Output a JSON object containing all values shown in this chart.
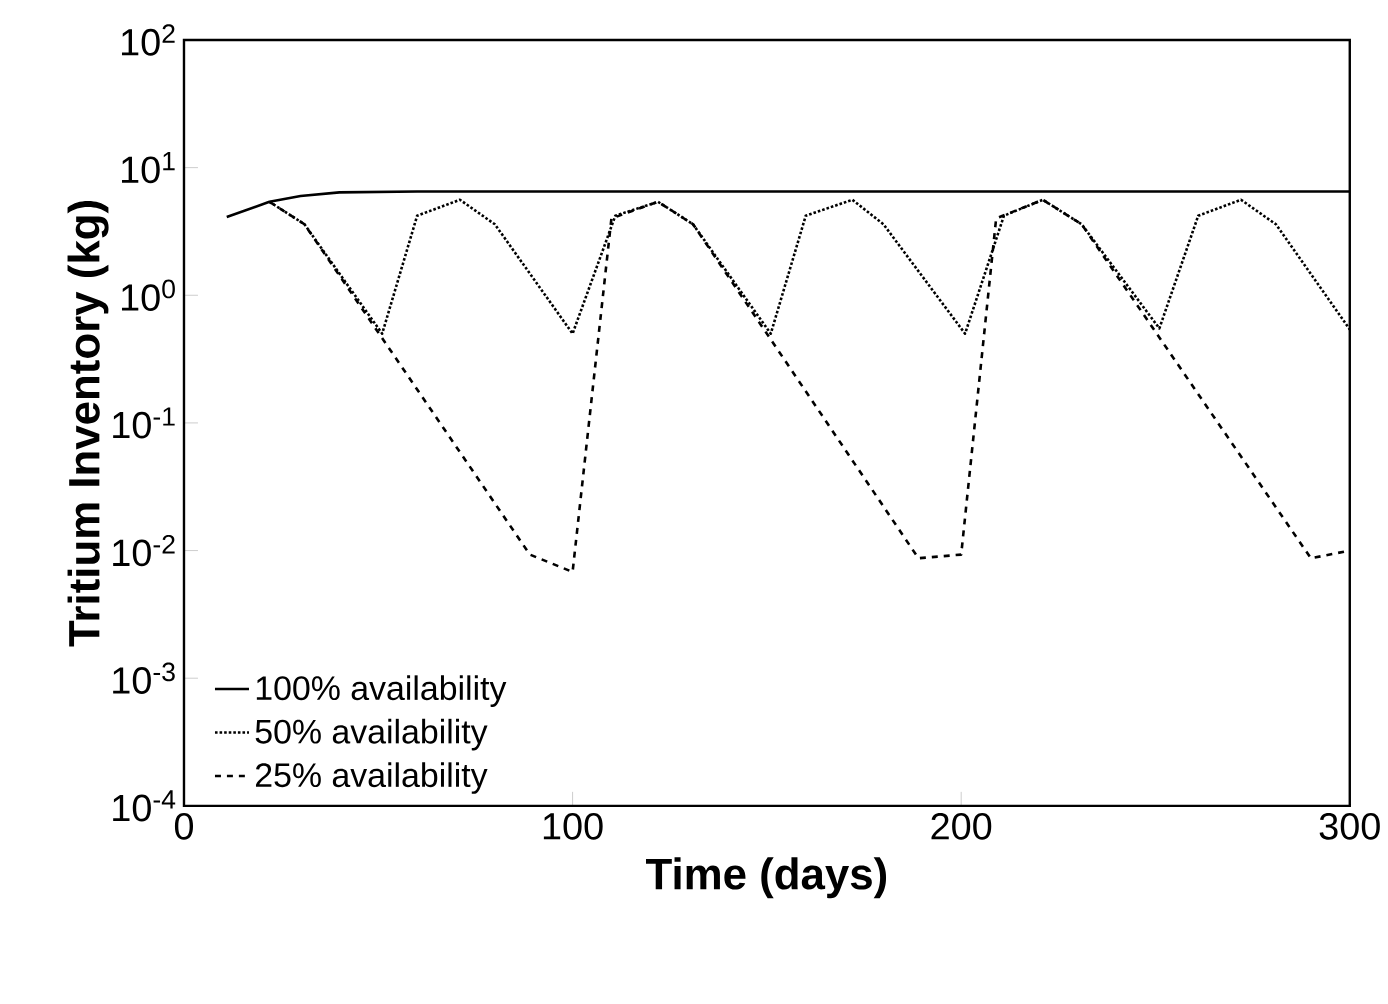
{
  "chart_data": {
    "type": "line",
    "xlabel": "Time (days)",
    "ylabel": "Tritium Inventory (kg)",
    "log": "y",
    "legend": "bottom left",
    "xlim": [
      0,
      300
    ],
    "xticks": [
      0,
      100,
      200,
      300
    ],
    "ylim": [
      0.0001,
      100
    ],
    "yticks": [
      {
        "value": 0.0001,
        "label": "10$^{-4}$"
      },
      {
        "value": 0.001,
        "label": "10$^{-3}$"
      },
      {
        "value": 0.01,
        "label": "10$^{-2}$"
      },
      {
        "value": 0.1,
        "label": "10$^{-1}$"
      },
      {
        "value": 1,
        "label": "10$^{0}$"
      },
      {
        "value": 10,
        "label": "10$^{1}$"
      },
      {
        "value": 100,
        "label": "10$^{2}$"
      }
    ],
    "series": [
      {
        "name": "100% availability",
        "color": "#000000",
        "line_style": "solid",
        "x": [
          11,
          22,
          30,
          40,
          60,
          100,
          150,
          200,
          250,
          300
        ],
        "values": [
          4.1,
          5.4,
          6.0,
          6.4,
          6.5,
          6.5,
          6.5,
          6.5,
          6.5,
          6.5
        ]
      },
      {
        "name": "50% availability",
        "color": "#000000",
        "line_style": "dotted",
        "x": [
          22,
          31,
          51,
          60,
          71,
          80,
          100,
          111,
          122,
          131,
          151,
          160,
          172,
          180,
          201,
          211,
          221,
          231,
          251,
          261,
          272,
          281,
          300
        ],
        "values": [
          5.4,
          3.6,
          0.5,
          4.2,
          5.6,
          3.6,
          0.5,
          4.2,
          5.4,
          3.6,
          0.5,
          4.2,
          5.6,
          3.6,
          0.5,
          4.2,
          5.6,
          3.6,
          0.55,
          4.2,
          5.6,
          3.6,
          0.54
        ]
      },
      {
        "name": "25% availability",
        "color": "#000000",
        "line_style": "dashed",
        "x": [
          22,
          31,
          89,
          100,
          110,
          122,
          131,
          189,
          200,
          209,
          221,
          231,
          290,
          300
        ],
        "values": [
          5.4,
          3.6,
          0.0093,
          0.0068,
          4.0,
          5.4,
          3.6,
          0.0087,
          0.0093,
          4.0,
          5.6,
          3.6,
          0.0087,
          0.01
        ]
      }
    ]
  }
}
